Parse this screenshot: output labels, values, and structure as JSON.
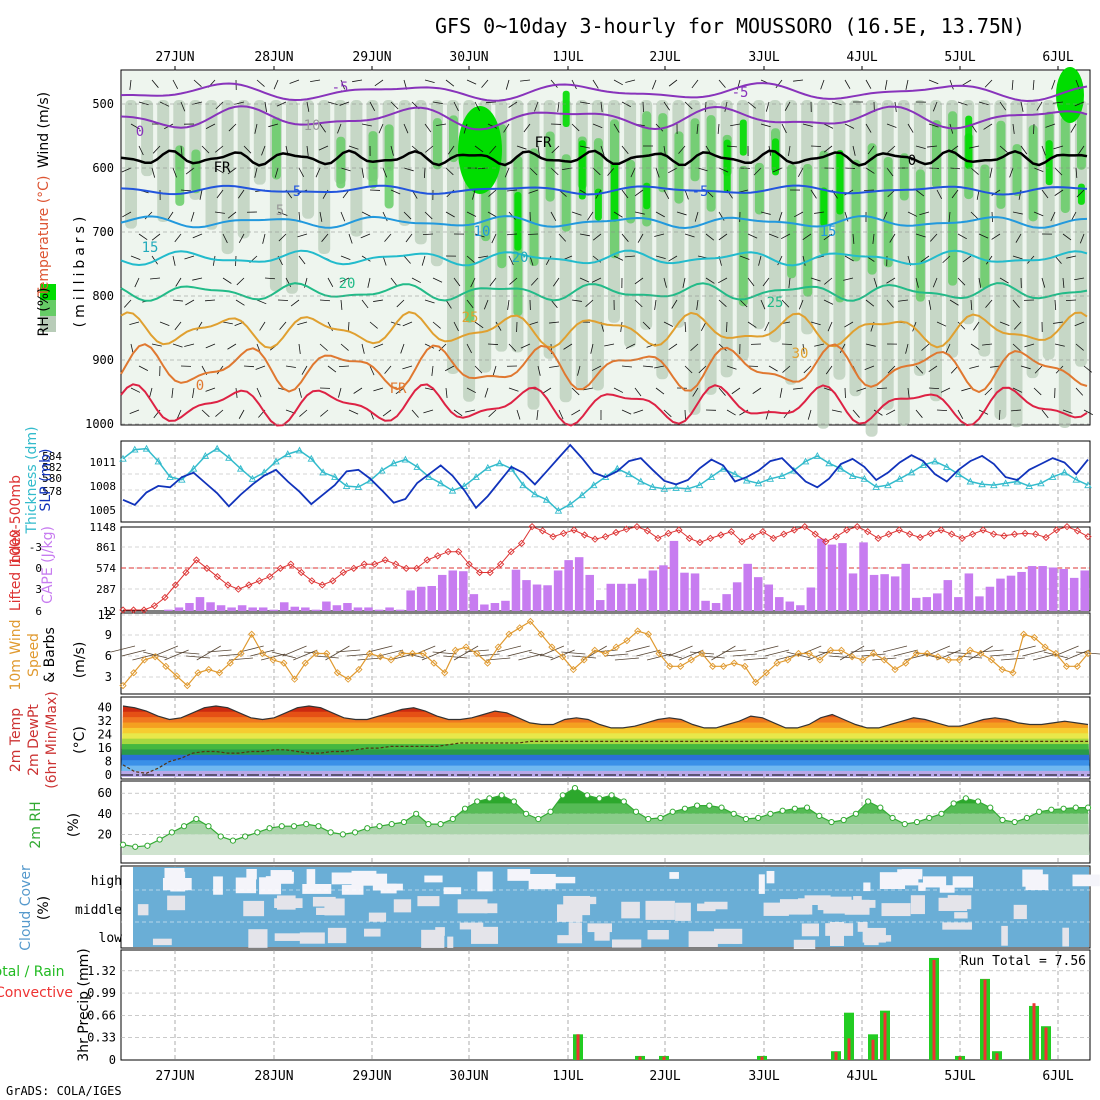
{
  "title": "GFS 0~10day 3-hourly for MOUSSORO (16.5E, 13.75N)",
  "footer": "GrADS: COLA/IGES",
  "dates": [
    "27JUN",
    "28JUN",
    "29JUN",
    "30JUN",
    "1JUL",
    "2JUL",
    "3JUL",
    "4JUL",
    "5JUL",
    "6JUL"
  ],
  "colors": {
    "rh_dark": "#00dd00",
    "rh_mid": "#66cc66",
    "rh_light": "#b8ccb8",
    "thk": "#33bbcc",
    "slp": "#1133bb",
    "cape": "#c77cf0",
    "li": "#dd3333",
    "wind": "#e09a30",
    "rhline": "#33aa33",
    "cloud": "#6aaed6",
    "precip_total": "#22cc22",
    "precip_conv": "#ee3333"
  },
  "panel_profile": {
    "ylabel_wind": "Wind (m/s)",
    "ylabel_temp": "Temperature (°C)",
    "ylabel_rh": "RH (%)",
    "ylabel_mb": "(millibars)",
    "levels": [
      500,
      600,
      700,
      800,
      900,
      1000
    ],
    "rh_legend": [
      "90",
      "70",
      "50"
    ],
    "iso_labels": [
      "-5",
      "0",
      "-5",
      "5",
      "-5",
      "10",
      "15",
      "15",
      "20",
      "20",
      "25",
      "25",
      "30",
      "0",
      "FR",
      "FR",
      "FR",
      "0",
      "10",
      "5"
    ]
  },
  "panel_thk": {
    "ylabel_left": "Thickness (dm)",
    "ylabel_left2": "1000-500mb",
    "ylabel_right": "SLP (mb)",
    "ticks_left": [
      "584",
      "582",
      "580",
      "578"
    ],
    "ticks_right": [
      "1011",
      "1008",
      "1005"
    ]
  },
  "panel_cape": {
    "ylabel_left": "Lifted Index",
    "ylabel_right": "CAPE (J/kg)",
    "ticks_left": [
      "-3",
      "0",
      "3",
      "6"
    ],
    "ticks_right": [
      "1148",
      "861",
      "574",
      "287",
      "12"
    ]
  },
  "panel_wind": {
    "ylabel_left": "10m Wind",
    "ylabel_left2": "Speed",
    "ylabel_left3": "& Barbs",
    "unit": "(m/s)",
    "ticks": [
      "12",
      "9",
      "6",
      "3"
    ]
  },
  "panel_temp": {
    "ylabel1": "2m Temp",
    "ylabel2": "2m DewPt",
    "ylabel3": "(6hr Min/Max)",
    "unit": "(°C)",
    "ticks": [
      "40",
      "32",
      "24",
      "16",
      "8",
      "0"
    ]
  },
  "panel_rh": {
    "ylabel": "2m RH",
    "unit": "(%)",
    "ticks": [
      "60",
      "40",
      "20"
    ]
  },
  "panel_cloud": {
    "ylabel": "Cloud Cover",
    "unit": "(%)",
    "rows": [
      "high",
      "middle",
      "low"
    ]
  },
  "panel_precip": {
    "ylabel_total": "Total / Rain",
    "ylabel_conv": "Convective",
    "ylabel_unit": "3hr Precip (mm)",
    "ticks": [
      "1.32",
      "0.99",
      "0.66",
      "0.33",
      "0"
    ],
    "run_total": "Run Total = 7.56"
  },
  "chart_data": [
    {
      "type": "line",
      "title": "1000-500mb Thickness (dm) / SLP (mb)",
      "series": [
        {
          "name": "Thickness",
          "values": [
            583.5,
            584.5,
            584.6,
            583.2,
            581.5,
            581.2,
            582.4,
            583.8,
            584.6,
            583.6,
            582.4,
            581.3,
            582.0,
            583.2,
            584.0,
            584.4,
            583.5,
            582.0,
            581.5,
            580.5,
            580.4,
            581.1,
            582.2,
            583.0,
            583.4,
            582.6,
            581.5,
            580.8,
            580.0,
            580.5,
            581.5,
            582.5,
            583.0,
            582.4,
            580.6,
            579.6,
            579.0,
            577.8,
            578.5,
            579.5,
            580.6,
            581.5,
            582.4,
            581.8,
            581.0,
            580.4,
            580.2,
            580.3,
            580.2,
            580.6,
            581.5,
            582.4,
            581.8,
            581.1,
            580.8,
            581.3,
            581.6,
            582.2,
            583.2,
            583.8,
            583.0,
            582.4,
            581.6,
            581.3,
            580.4,
            580.6,
            581.3,
            582.0,
            582.8,
            583.2,
            582.6,
            581.8,
            581.0,
            580.7,
            580.6,
            580.8,
            581.0,
            580.5,
            580.8,
            581.5,
            582.0,
            581.2,
            580.6
          ]
        },
        {
          "name": "SLP",
          "values": [
            1005.5,
            1004.8,
            1006.5,
            1007.4,
            1007.2,
            1008.6,
            1009.2,
            1007.8,
            1006.4,
            1004.6,
            1006.2,
            1007.6,
            1008.8,
            1009.6,
            1008.0,
            1006.6,
            1004.9,
            1006.2,
            1007.5,
            1009.4,
            1009.6,
            1008.4,
            1006.8,
            1005.1,
            1005.6,
            1007.8,
            1009.0,
            1010.2,
            1008.8,
            1006.8,
            1004.4,
            1006.0,
            1008.0,
            1010.0,
            1009.2,
            1007.6,
            1009.4,
            1011.2,
            1013.0,
            1011.2,
            1009.2,
            1008.6,
            1009.4,
            1010.8,
            1011.2,
            1009.6,
            1008.1,
            1007.6,
            1008.2,
            1009.8,
            1011.0,
            1010.2,
            1008.0,
            1008.6,
            1009.5,
            1010.8,
            1011.2,
            1009.6,
            1008.0,
            1007.2,
            1008.4,
            1010.4,
            1011.1,
            1010.0,
            1008.2,
            1009.2,
            1010.6,
            1011.6,
            1010.8,
            1009.0,
            1008.0,
            1009.6,
            1010.8,
            1011.5,
            1010.4,
            1008.6,
            1008.2,
            1009.6,
            1010.4,
            1011.2,
            1010.6,
            1009.0,
            1011.0
          ]
        }
      ],
      "xlabel": "",
      "ylim_left": [
        577,
        585
      ],
      "ylim_right": [
        1003,
        1013
      ]
    },
    {
      "type": "bar",
      "title": "CAPE (J/kg) / Lifted Index",
      "series": [
        {
          "name": "CAPE",
          "values": [
            12,
            12,
            12,
            12,
            30,
            60,
            120,
            200,
            130,
            90,
            60,
            90,
            60,
            60,
            30,
            130,
            70,
            60,
            30,
            140,
            90,
            120,
            60,
            60,
            30,
            60,
            30,
            290,
            340,
            350,
            500,
            560,
            550,
            240,
            100,
            120,
            150,
            570,
            430,
            370,
            360,
            560,
            700,
            740,
            500,
            160,
            380,
            380,
            380,
            450,
            560,
            630,
            960,
            530,
            520,
            150,
            120,
            240,
            400,
            650,
            470,
            370,
            200,
            140,
            90,
            330,
            990,
            910,
            930,
            520,
            940,
            500,
            510,
            480,
            650,
            190,
            200,
            250,
            430,
            200,
            520,
            210,
            340,
            450,
            490,
            540,
            620,
            620,
            600,
            580,
            460,
            560
          ]
        },
        {
          "name": "Lifted Index",
          "values": [
            6,
            6,
            6,
            5.5,
            4.5,
            3,
            1.5,
            0,
            1,
            2,
            3,
            3.5,
            3,
            2.5,
            2,
            1,
            0.5,
            1.5,
            2.5,
            3,
            2.5,
            1.5,
            1,
            0.5,
            0.5,
            0,
            0.5,
            1,
            1,
            0,
            -0.5,
            -1,
            -1,
            0.5,
            1.5,
            1.5,
            0.5,
            -1,
            -2,
            -4,
            -3.5,
            -2.8,
            -3.2,
            -3.6,
            -3,
            -2.5,
            -2.8,
            -3.3,
            -3.7,
            -4,
            -3.5,
            -2.6,
            -3.2,
            -3.6,
            -2.6,
            -2.1,
            -2.6,
            -3,
            -3.4,
            -2.2,
            -2.8,
            -3.4,
            -2.6,
            -3.1,
            -3.6,
            -4,
            -3.1,
            -2.2,
            -2.8,
            -3.6,
            -4,
            -3.4,
            -2.6,
            -3.1,
            -3.6,
            -3.1,
            -2.7,
            -3.2,
            -3.6,
            -3.1,
            -2.6,
            -3.1,
            -3.6,
            -3.1,
            -2.9,
            -3.1,
            -3.2,
            -3.1,
            -2.7,
            -3.6,
            -4,
            -3.5,
            -2.8
          ]
        }
      ],
      "ylim_left": [
        6,
        -3
      ],
      "ylim_right": [
        12,
        1148
      ]
    },
    {
      "type": "line",
      "title": "10m Wind Speed (m/s)",
      "series": [
        {
          "name": "Speed",
          "values": [
            1,
            3,
            5,
            5.5,
            4,
            2.5,
            1,
            3,
            3.5,
            3,
            4.5,
            6,
            9,
            6,
            5,
            4.5,
            2,
            4.5,
            6,
            6,
            3,
            2,
            3.5,
            6,
            5.5,
            5,
            6,
            6,
            6,
            4.5,
            3,
            6.5,
            7,
            6,
            4.5,
            7,
            9,
            10,
            11,
            9,
            7,
            5.5,
            3.5,
            5,
            6.5,
            6,
            7,
            8,
            9.5,
            9,
            6,
            4,
            4,
            5,
            6,
            4,
            4,
            4.5,
            4,
            1.5,
            3,
            4.5,
            5,
            6,
            6,
            5,
            6.5,
            6.5,
            5.5,
            5,
            6,
            5,
            3.5,
            4.5,
            6,
            6,
            5.5,
            5,
            5,
            6.5,
            6,
            5,
            3.5,
            3,
            9,
            8.5,
            7,
            6,
            4,
            4,
            6
          ]
        }
      ],
      "ylim": [
        0,
        12
      ]
    },
    {
      "type": "area",
      "title": "2m Temp / DewPt (°C)",
      "series": [
        {
          "name": "2m Temp",
          "values": [
            41,
            40,
            38,
            35,
            33,
            34,
            37,
            40,
            41,
            40,
            37,
            34,
            33,
            34,
            37,
            40,
            41,
            40,
            37,
            34,
            33,
            33,
            35,
            37,
            39,
            40,
            38,
            35,
            33,
            33,
            34,
            36,
            38,
            37,
            34,
            31,
            30,
            30,
            33,
            34,
            33,
            30,
            28,
            28,
            29,
            31,
            33,
            34,
            33,
            30,
            28,
            28,
            30,
            32,
            35,
            34,
            31,
            28,
            28,
            30,
            34,
            36,
            33,
            30,
            28,
            28,
            30,
            32,
            34,
            33,
            31,
            29,
            29,
            31,
            33,
            34,
            33,
            31,
            30,
            30,
            31,
            32,
            31,
            30
          ]
        },
        {
          "name": "2m DewPt",
          "values": [
            6,
            2,
            1,
            4,
            8,
            10,
            13,
            14,
            14,
            13,
            13,
            14,
            14,
            15,
            15,
            14,
            13,
            13,
            14,
            14,
            15,
            16,
            16,
            17,
            17,
            17,
            17,
            17,
            18,
            19,
            19,
            19,
            19,
            19,
            19,
            20,
            20,
            20,
            20,
            20,
            20,
            20,
            20,
            20,
            20,
            20,
            20,
            20,
            20,
            20,
            20,
            20,
            20,
            20,
            20,
            20,
            20,
            20,
            20,
            20,
            20,
            20,
            20,
            20,
            20,
            20,
            20,
            20,
            20,
            20,
            20,
            20,
            20,
            20,
            20,
            20,
            20,
            20,
            20,
            20,
            20,
            20,
            20,
            20
          ]
        }
      ],
      "ylim": [
        0,
        44
      ]
    },
    {
      "type": "area",
      "title": "2m RH (%)",
      "series": [
        {
          "name": "2m RH",
          "values": [
            10,
            8,
            9,
            15,
            22,
            28,
            35,
            28,
            18,
            14,
            18,
            22,
            26,
            28,
            28,
            30,
            28,
            22,
            20,
            22,
            26,
            28,
            30,
            32,
            40,
            30,
            30,
            35,
            45,
            52,
            55,
            58,
            52,
            40,
            35,
            42,
            58,
            65,
            58,
            55,
            58,
            52,
            42,
            35,
            36,
            42,
            45,
            48,
            48,
            46,
            40,
            35,
            36,
            40,
            43,
            45,
            46,
            38,
            32,
            34,
            40,
            52,
            46,
            36,
            30,
            32,
            36,
            40,
            50,
            55,
            52,
            46,
            34,
            32,
            36,
            42,
            44,
            45,
            46,
            46
          ]
        }
      ],
      "ylim": [
        0,
        68
      ]
    },
    {
      "type": "bar",
      "title": "3hr Precip (mm)",
      "categories": [
        "1JUL",
        "1JUL+3h",
        "2JUL-6h",
        "2JUL",
        "3JUL",
        "4JUL-6h",
        "4JUL-3h",
        "4JUL",
        "4JUL+3h",
        "4JUL+6h",
        "5JUL-3h",
        "5JUL",
        "5JUL+3h",
        "5JUL+6h",
        "6JUL-3h",
        "6JUL"
      ],
      "series": [
        {
          "name": "Total",
          "values": [
            0.38,
            0,
            0.06,
            0.06,
            0.06,
            0.13,
            0.7,
            0.38,
            0.73,
            0,
            1.51,
            0.06,
            1.2,
            0.13,
            0.8,
            0.5
          ]
        },
        {
          "name": "Convective",
          "values": [
            0.38,
            0,
            0.05,
            0.05,
            0.05,
            0.12,
            0.32,
            0.3,
            0.7,
            0,
            1.48,
            0.05,
            1.19,
            0.1,
            0.84,
            0.48
          ]
        }
      ],
      "ylim": [
        0,
        1.45
      ]
    }
  ]
}
